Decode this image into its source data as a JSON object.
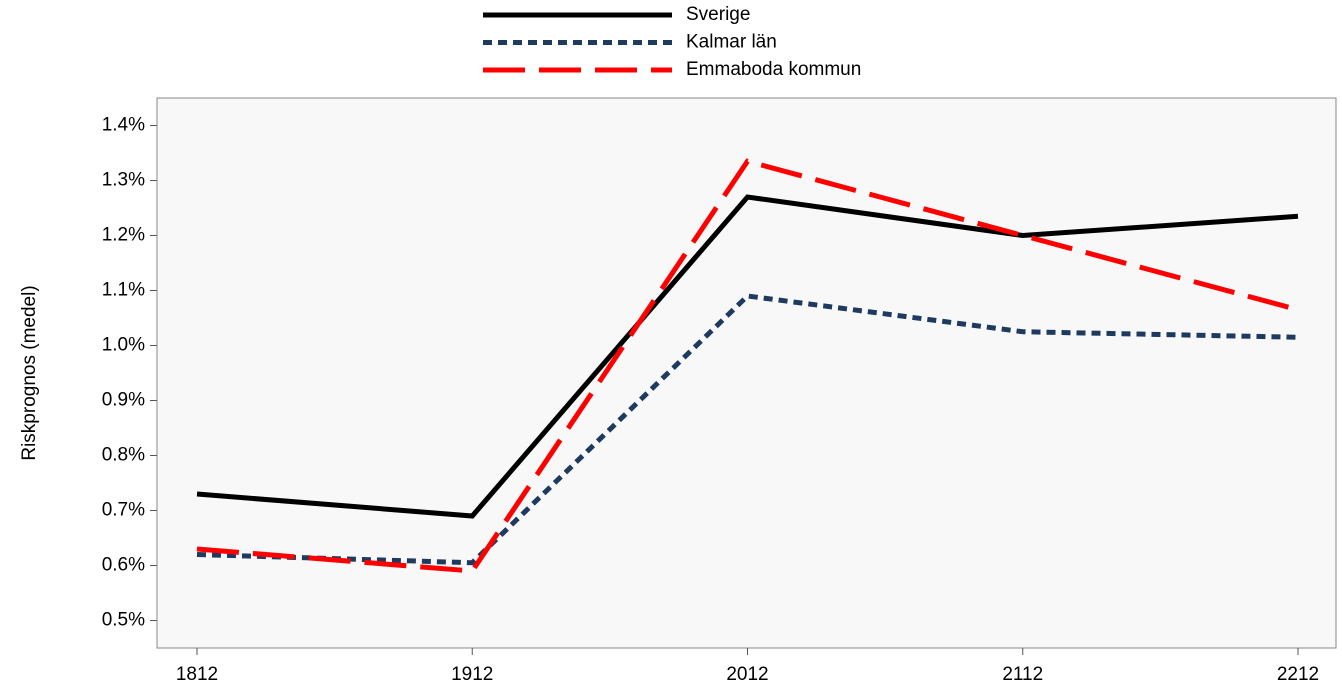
{
  "chart_data": {
    "type": "line",
    "ylabel": "Riskprognos (medel)",
    "categories": [
      "1812",
      "1912",
      "2012",
      "2112",
      "2212"
    ],
    "series": [
      {
        "name": "Sverige",
        "color": "#000000",
        "style": "solid",
        "values": [
          0.73,
          0.69,
          1.27,
          1.2,
          1.235
        ]
      },
      {
        "name": "Kalmar län",
        "color": "#1f3a5f",
        "style": "dotted",
        "values": [
          0.62,
          0.605,
          1.09,
          1.025,
          1.015
        ]
      },
      {
        "name": "Emmaboda kommun",
        "color": "#ff0000",
        "style": "dashed",
        "values": [
          0.63,
          0.59,
          1.335,
          1.2,
          1.065
        ]
      }
    ],
    "ylim": [
      0.45,
      1.45
    ],
    "yticks": [
      {
        "value": 0.5,
        "label": "0.5%"
      },
      {
        "value": 0.6,
        "label": "0.6%"
      },
      {
        "value": 0.7,
        "label": "0.7%"
      },
      {
        "value": 0.8,
        "label": "0.8%"
      },
      {
        "value": 0.9,
        "label": "0.9%"
      },
      {
        "value": 1.0,
        "label": "1.0%"
      },
      {
        "value": 1.1,
        "label": "1.1%"
      },
      {
        "value": 1.2,
        "label": "1.2%"
      },
      {
        "value": 1.3,
        "label": "1.3%"
      },
      {
        "value": 1.4,
        "label": "1.4%"
      }
    ],
    "legend": "top"
  }
}
